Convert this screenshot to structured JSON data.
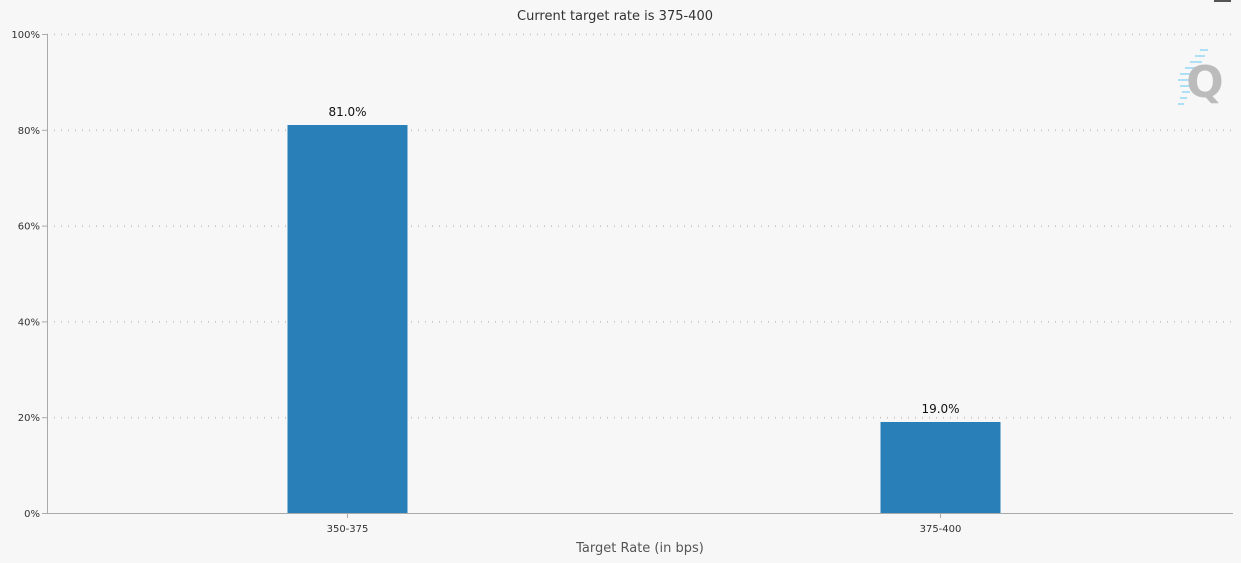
{
  "chart_data": {
    "type": "bar",
    "title": "Current target rate is 375-400",
    "xlabel": "Target Rate (in bps)",
    "ylabel": "",
    "categories": [
      "350-375",
      "375-400"
    ],
    "values": [
      81.0,
      19.0
    ],
    "data_labels": [
      "81.0%",
      "19.0%"
    ],
    "ylim": [
      0,
      100
    ],
    "yticks": [
      "0%",
      "20%",
      "40%",
      "60%",
      "80%",
      "100%"
    ],
    "grid": true,
    "bar_color": "#2980b9"
  },
  "watermark": "Q"
}
